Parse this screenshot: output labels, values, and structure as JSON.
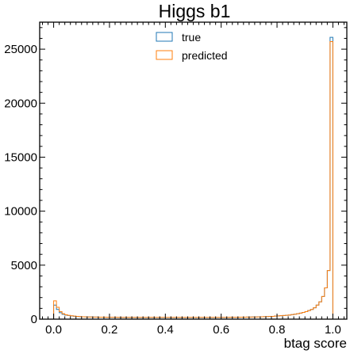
{
  "chart_data": {
    "type": "histogram",
    "title": "Higgs b1",
    "xlabel": "btag score",
    "ylabel": "",
    "xlim": [
      -0.05,
      1.05
    ],
    "ylim": [
      0,
      27500
    ],
    "xticks": [
      0.0,
      0.2,
      0.4,
      0.6,
      0.8,
      1.0
    ],
    "xtick_labels": [
      "0.0",
      "0.2",
      "0.4",
      "0.6",
      "0.8",
      "1.0"
    ],
    "yticks": [
      0,
      5000,
      10000,
      15000,
      20000,
      25000
    ],
    "ytick_labels": [
      "0",
      "5000",
      "10000",
      "15000",
      "20000",
      "25000"
    ],
    "bin_edges_start": 0.0,
    "bin_width": 0.01,
    "legend": {
      "placement": "top-center",
      "entries": [
        "true",
        "predicted"
      ]
    },
    "series": [
      {
        "name": "true",
        "color": "#1f77b4",
        "values": [
          1300,
          900,
          600,
          450,
          380,
          340,
          300,
          270,
          250,
          230,
          220,
          210,
          205,
          200,
          195,
          190,
          185,
          180,
          178,
          176,
          174,
          172,
          170,
          168,
          166,
          165,
          164,
          163,
          162,
          161,
          160,
          160,
          160,
          160,
          160,
          160,
          160,
          160,
          160,
          160,
          160,
          160,
          160,
          160,
          160,
          160,
          160,
          160,
          160,
          160,
          160,
          160,
          160,
          160,
          160,
          160,
          160,
          160,
          160,
          160,
          162,
          165,
          168,
          170,
          172,
          175,
          178,
          180,
          185,
          190,
          195,
          200,
          205,
          210,
          220,
          230,
          240,
          250,
          260,
          280,
          300,
          320,
          340,
          360,
          380,
          420,
          460,
          500,
          560,
          620,
          700,
          800,
          900,
          1050,
          1300,
          1600,
          2100,
          2900,
          4500,
          26100
        ]
      },
      {
        "name": "predicted",
        "color": "#ff7f0e",
        "values": [
          1700,
          1100,
          700,
          500,
          400,
          350,
          310,
          280,
          255,
          235,
          222,
          212,
          206,
          201,
          196,
          191,
          186,
          181,
          179,
          177,
          175,
          173,
          171,
          169,
          167,
          166,
          165,
          164,
          163,
          162,
          161,
          161,
          161,
          161,
          161,
          161,
          161,
          161,
          161,
          161,
          161,
          161,
          161,
          161,
          161,
          161,
          161,
          161,
          161,
          161,
          161,
          161,
          161,
          161,
          161,
          161,
          161,
          161,
          161,
          161,
          163,
          166,
          169,
          171,
          173,
          176,
          179,
          181,
          186,
          191,
          196,
          201,
          206,
          211,
          221,
          231,
          241,
          251,
          261,
          281,
          301,
          321,
          341,
          361,
          381,
          421,
          461,
          501,
          561,
          621,
          701,
          801,
          901,
          1051,
          1301,
          1601,
          2101,
          2901,
          4500,
          25700
        ]
      }
    ]
  }
}
